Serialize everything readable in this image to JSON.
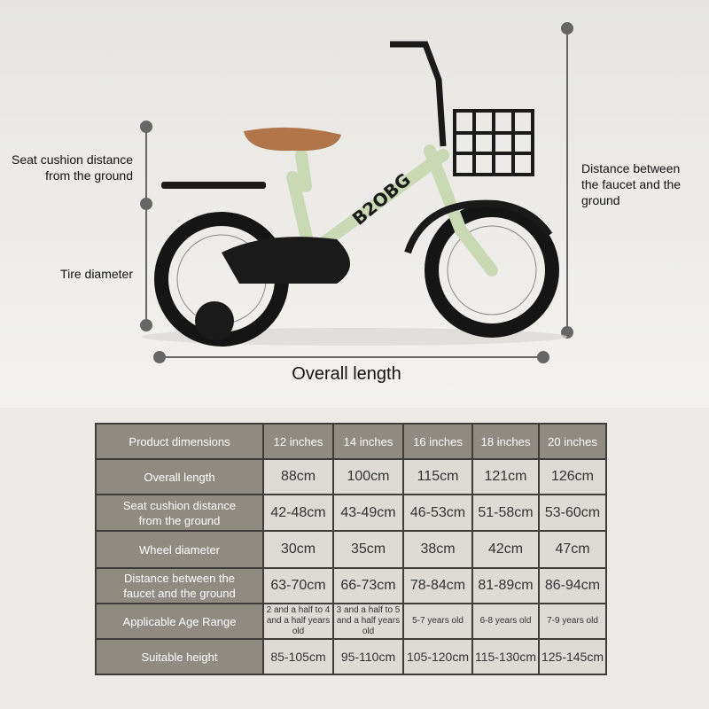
{
  "labels": {
    "seat": "Seat cushion distance\nfrom the ground",
    "tire": "Tire diameter",
    "faucet": "Distance between\nthe faucet and the\nground",
    "overall": "Overall length"
  },
  "brand_logo": "B2OBG",
  "colors": {
    "frame": "#c9d9b4",
    "header": "#8f8b80",
    "cell": "#dedbd6",
    "seat": "#b0764a"
  },
  "table": {
    "headers": [
      "Product dimensions",
      "12 inches",
      "14 inches",
      "16 inches",
      "18 inches",
      "20 inches"
    ],
    "rows": [
      {
        "label": "Overall length",
        "values": [
          "88cm",
          "100cm",
          "115cm",
          "121cm",
          "126cm"
        ]
      },
      {
        "label": "Seat cushion distance from the ground",
        "values": [
          "42-48cm",
          "43-49cm",
          "46-53cm",
          "51-58cm",
          "53-60cm"
        ]
      },
      {
        "label": "Wheel diameter",
        "values": [
          "30cm",
          "35cm",
          "38cm",
          "42cm",
          "47cm"
        ]
      },
      {
        "label": "Distance between the faucet and the ground",
        "values": [
          "63-70cm",
          "66-73cm",
          "78-84cm",
          "81-89cm",
          "86-94cm"
        ]
      },
      {
        "label": "Applicable Age Range",
        "values": [
          "2 and a half to 4 and a half years old",
          "3 and a half to 5 and a half years old",
          "5-7 years old",
          "6-8 years old",
          "7-9 years old"
        ]
      },
      {
        "label": "Suitable height",
        "values": [
          "85-105cm",
          "95-110cm",
          "105-120cm",
          "115-130cm",
          "125-145cm"
        ]
      }
    ]
  }
}
